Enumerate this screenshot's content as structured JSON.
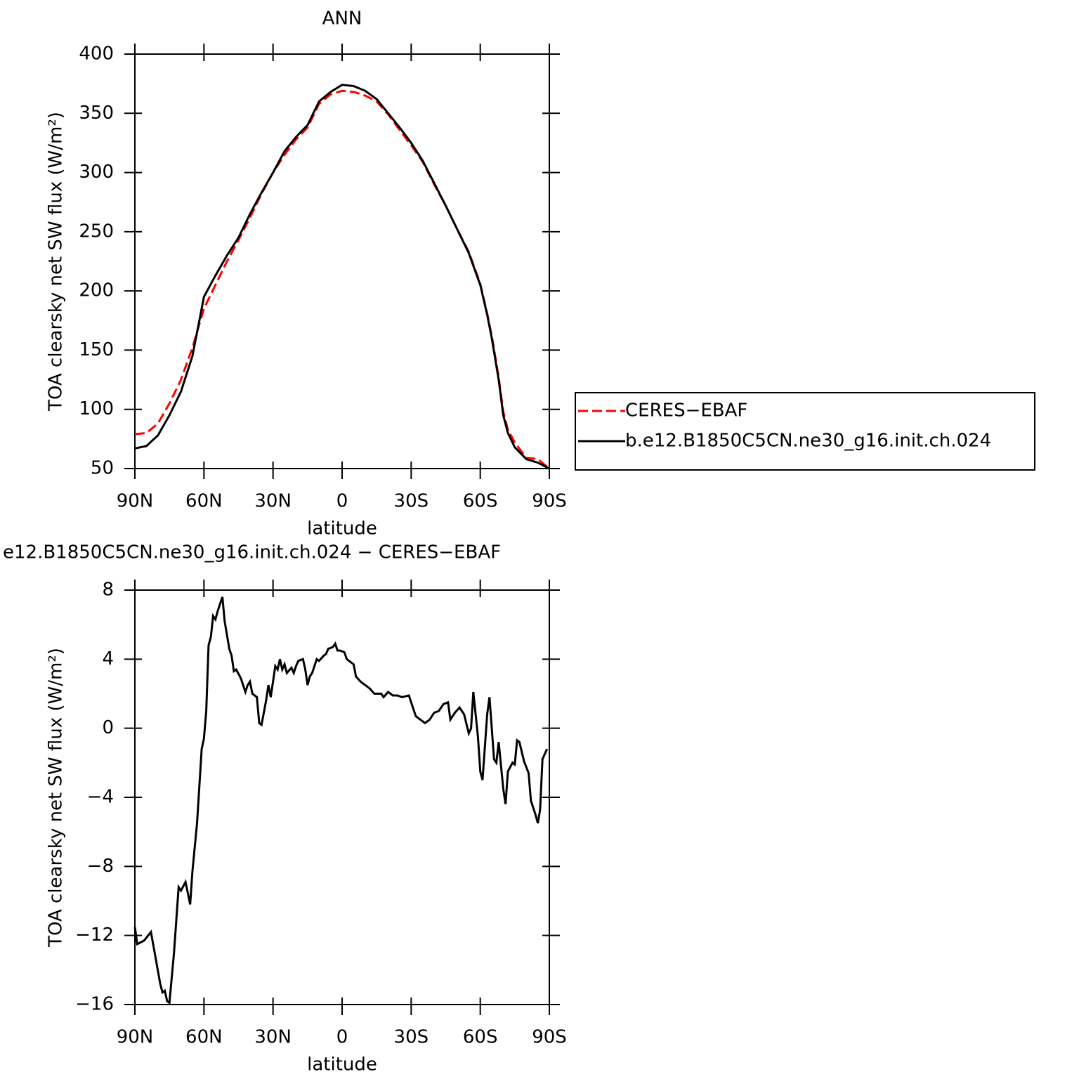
{
  "chart_data": [
    {
      "type": "line",
      "title": "ANN",
      "xlabel": "latitude",
      "ylabel": "TOA clearsky net SW flux (W/m²)",
      "x": [
        90,
        85,
        80,
        75,
        70,
        65,
        62,
        60,
        55,
        50,
        45,
        40,
        35,
        30,
        25,
        20,
        15,
        10,
        5,
        0,
        -5,
        -10,
        -15,
        -20,
        -25,
        -30,
        -35,
        -40,
        -45,
        -50,
        -55,
        -60,
        -63,
        -65,
        -68,
        -70,
        -72,
        -75,
        -80,
        -85,
        -90
      ],
      "xlim": [
        90,
        -90
      ],
      "xticks": [
        {
          "value": 90,
          "label": "90N"
        },
        {
          "value": 60,
          "label": "60N"
        },
        {
          "value": 30,
          "label": "30N"
        },
        0,
        {
          "value": -30,
          "label": "30S"
        },
        {
          "value": -60,
          "label": "60S"
        },
        {
          "value": -90,
          "label": "90S"
        }
      ],
      "ylim": [
        50,
        400
      ],
      "yticks": [
        50,
        100,
        150,
        200,
        250,
        300,
        350,
        400
      ],
      "legend": "right",
      "series": [
        {
          "name": "CERES−EBAF",
          "color": "#ff0000",
          "style": "dashed",
          "values": [
            79,
            80,
            88,
            105,
            125,
            152,
            172,
            185,
            205,
            225,
            243,
            262,
            282,
            300,
            315,
            328,
            338,
            358,
            366,
            369,
            368,
            365,
            360,
            349,
            336,
            323,
            309,
            290,
            272,
            252,
            233,
            206,
            181,
            162,
            127,
            98,
            83,
            72,
            59,
            58,
            50
          ]
        },
        {
          "name": "b.e12.B1850C5CN.ne30_g16.init.ch.024",
          "color": "#000000",
          "style": "solid",
          "values": [
            67,
            69,
            78,
            95,
            115,
            145,
            175,
            195,
            213,
            230,
            245,
            265,
            283,
            300,
            318,
            330,
            340,
            360,
            368,
            374,
            373,
            369,
            362,
            350,
            338,
            325,
            310,
            291,
            272,
            252,
            232,
            205,
            180,
            160,
            125,
            95,
            80,
            68,
            58,
            55,
            50
          ]
        }
      ]
    },
    {
      "type": "line",
      "title": "e12.B1850C5CN.ne30_g16.init.ch.024 − CERES−EBAF",
      "xlabel": "latitude",
      "ylabel": "TOA clearsky net SW flux (W/m²)",
      "x": [
        90,
        89,
        86,
        83,
        81,
        79,
        78,
        77,
        76,
        75,
        73,
        71,
        70,
        68,
        66,
        65,
        63,
        61,
        60,
        59,
        58,
        57,
        56,
        55,
        54,
        52,
        51,
        49,
        48,
        47,
        46,
        44,
        42,
        41,
        40,
        39,
        37,
        36,
        35,
        33,
        32,
        31,
        29,
        28,
        27,
        26,
        25,
        24,
        22,
        21,
        20,
        19,
        17,
        16,
        15,
        14,
        13,
        11,
        10,
        8,
        7,
        6,
        4,
        3,
        2,
        1,
        -1,
        -2,
        -5,
        -6,
        -8,
        -10,
        -12,
        -14,
        -17,
        -18,
        -20,
        -22,
        -24,
        -26,
        -29,
        -30,
        -32,
        -34,
        -36,
        -38,
        -40,
        -42,
        -44,
        -46,
        -47,
        -49,
        -51,
        -53,
        -55,
        -56,
        -57,
        -59,
        -60,
        -61,
        -63,
        -64,
        -66,
        -67,
        -68,
        -70,
        -71,
        -72,
        -74,
        -75,
        -76,
        -77,
        -79,
        -81,
        -82,
        -84,
        -85,
        -86,
        -87,
        -89
      ],
      "xlim": [
        90,
        -90
      ],
      "xticks": [
        {
          "value": 90,
          "label": "90N"
        },
        {
          "value": 60,
          "label": "60N"
        },
        {
          "value": 30,
          "label": "30N"
        },
        0,
        {
          "value": -30,
          "label": "30S"
        },
        {
          "value": -60,
          "label": "60S"
        },
        {
          "value": -90,
          "label": "90S"
        }
      ],
      "ylim": [
        -16,
        8
      ],
      "yticks": [
        {
          "value": -16,
          "label": "−16"
        },
        {
          "value": -12,
          "label": "−12"
        },
        {
          "value": -8,
          "label": "−8"
        },
        {
          "value": -4,
          "label": "−4"
        },
        0,
        4,
        8
      ],
      "series": [
        {
          "color": "#000000",
          "style": "solid",
          "values": [
            -11.5,
            -12.5,
            -12.3,
            -11.8,
            -13.3,
            -14.8,
            -15.3,
            -15.2,
            -15.8,
            -15.9,
            -13,
            -9.2,
            -9.4,
            -8.9,
            -10.2,
            -8.3,
            -5.5,
            -1.2,
            -0.6,
            1,
            4.8,
            5.3,
            6.5,
            6.3,
            6.8,
            7.6,
            6.2,
            4.6,
            4.2,
            3.3,
            3.4,
            2.9,
            2.1,
            2.5,
            2.7,
            2,
            1.8,
            0.3,
            0.2,
            1.6,
            2.5,
            1.8,
            3.6,
            3.4,
            4,
            3.4,
            3.7,
            3.2,
            3.5,
            3.2,
            3.6,
            3.9,
            4,
            3.4,
            2.5,
            3,
            3.2,
            4,
            3.9,
            4.2,
            4.3,
            4.6,
            4.7,
            4.9,
            4.5,
            4.5,
            4.4,
            4,
            3.7,
            3,
            2.7,
            2.5,
            2.3,
            2,
            2,
            1.8,
            2.1,
            1.9,
            1.9,
            1.8,
            1.9,
            1.5,
            0.7,
            0.5,
            0.3,
            0.5,
            0.9,
            1,
            1.4,
            1.5,
            0.5,
            0.9,
            1.2,
            0.8,
            -0.3,
            0,
            2.1,
            -0.5,
            -2.5,
            -3,
            0.8,
            1.8,
            -1.8,
            -2,
            -0.8,
            -3.5,
            -4.4,
            -2.5,
            -2,
            -2.1,
            -0.7,
            -0.8,
            -1.9,
            -2.6,
            -4.2,
            -5,
            -5.5,
            -4.7,
            -1.8,
            -1.2
          ]
        }
      ]
    }
  ]
}
